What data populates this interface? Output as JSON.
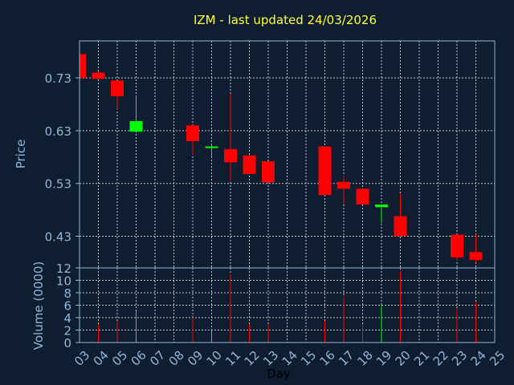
{
  "chart_data": {
    "type": "candlestick",
    "title": "IZM - last updated 24/03/2026",
    "xlabel": "Day",
    "price_panel": {
      "ylabel": "Price",
      "yticks": [
        "0.43",
        "0.53",
        "0.63",
        "0.73"
      ],
      "ylim": [
        0.37,
        0.8
      ],
      "grid": true
    },
    "volume_panel": {
      "ylabel": "Volume (0000)",
      "yticks": [
        "0",
        "2",
        "4",
        "6",
        "8",
        "10",
        "12"
      ],
      "ylim": [
        0,
        12
      ],
      "grid": true
    },
    "x_ticks": [
      "03",
      "04",
      "05",
      "06",
      "07",
      "08",
      "09",
      "10",
      "11",
      "12",
      "13",
      "14",
      "15",
      "16",
      "17",
      "18",
      "19",
      "20",
      "21",
      "22",
      "23",
      "24",
      "25"
    ],
    "colors": {
      "up": "#00ff00",
      "down": "#ff0000",
      "background": "#0e1e30",
      "title": "#ffff33",
      "axis": "#8fb6d8"
    },
    "candles": [
      {
        "day": "03",
        "open": 0.775,
        "close": 0.73,
        "high": 0.775,
        "low": 0.73,
        "volume": 0
      },
      {
        "day": "04",
        "open": 0.74,
        "close": 0.728,
        "high": 0.742,
        "low": 0.728,
        "volume": 3
      },
      {
        "day": "05",
        "open": 0.725,
        "close": 0.695,
        "high": 0.725,
        "low": 0.67,
        "volume": 3.5
      },
      {
        "day": "06",
        "open": 0.628,
        "close": 0.648,
        "high": 0.695,
        "low": 0.628,
        "volume": 5
      },
      {
        "day": "09",
        "open": 0.64,
        "close": 0.61,
        "high": 0.64,
        "low": 0.583,
        "volume": 4
      },
      {
        "day": "10",
        "open": 0.598,
        "close": 0.6,
        "high": 0.605,
        "low": 0.58,
        "volume": 2
      },
      {
        "day": "11",
        "open": 0.595,
        "close": 0.57,
        "high": 0.7,
        "low": 0.535,
        "volume": 11
      },
      {
        "day": "12",
        "open": 0.583,
        "close": 0.548,
        "high": 0.583,
        "low": 0.548,
        "volume": 3
      },
      {
        "day": "13",
        "open": 0.572,
        "close": 0.532,
        "high": 0.572,
        "low": 0.532,
        "volume": 3
      },
      {
        "day": "16",
        "open": 0.6,
        "close": 0.508,
        "high": 0.6,
        "low": 0.508,
        "volume": 3.5
      },
      {
        "day": "17",
        "open": 0.533,
        "close": 0.52,
        "high": 0.545,
        "low": 0.49,
        "volume": 7.5
      },
      {
        "day": "18",
        "open": 0.52,
        "close": 0.49,
        "high": 0.52,
        "low": 0.49,
        "volume": 3
      },
      {
        "day": "19",
        "open": 0.485,
        "close": 0.49,
        "high": 0.49,
        "low": 0.455,
        "volume": 6
      },
      {
        "day": "20",
        "open": 0.468,
        "close": 0.43,
        "high": 0.51,
        "low": 0.43,
        "volume": 11.5
      },
      {
        "day": "23",
        "open": 0.433,
        "close": 0.39,
        "high": 0.433,
        "low": 0.383,
        "volume": 5.5
      },
      {
        "day": "24",
        "open": 0.4,
        "close": 0.385,
        "high": 0.433,
        "low": 0.38,
        "volume": 6.5
      }
    ]
  }
}
